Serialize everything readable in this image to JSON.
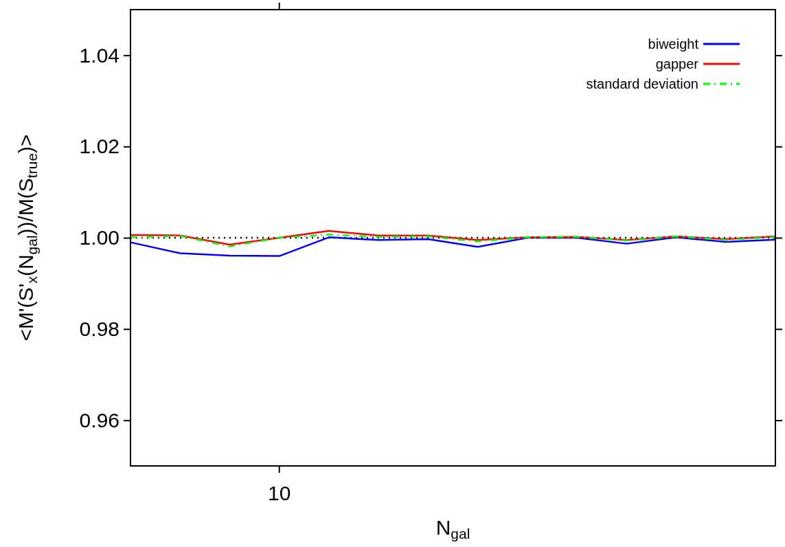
{
  "chart_data": {
    "type": "line",
    "xlabel": "N$_{gal}$",
    "ylabel": "<M'(S'$_{x}$(N$_{gal}$))/M(S$_{true}$)>",
    "categories": [
      null,
      null,
      null,
      "10",
      null,
      null,
      null,
      null,
      null,
      null,
      null,
      null,
      null,
      null
    ],
    "series": [
      {
        "name": "biweight",
        "color": "#0000ff",
        "line_style": "solid",
        "values": [
          0.999,
          0.9966,
          0.9961,
          0.996,
          1.0001,
          0.9995,
          0.9997,
          0.998,
          1.0,
          1.0,
          0.9987,
          1.0001,
          0.9991,
          0.9996
        ]
      },
      {
        "name": "gapper",
        "color": "#ff0000",
        "line_style": "solid",
        "values": [
          1.0006,
          1.0005,
          0.9985,
          1.0,
          1.0015,
          1.0005,
          1.0005,
          0.9995,
          1.0001,
          1.0002,
          0.9995,
          1.0003,
          0.9997,
          1.0003
        ]
      },
      {
        "name": "standard deviation",
        "color": "#00ff00",
        "line_style": "dashdot",
        "values": [
          1.0001,
          1.0004,
          0.9981,
          1.0,
          1.0007,
          1.0002,
          1.0003,
          0.9992,
          1.0001,
          1.0002,
          0.9994,
          1.0003,
          0.9995,
          1.0002
        ]
      }
    ],
    "ylim": [
      0.95,
      1.05
    ],
    "yticks": [
      {
        "value": 0.96,
        "label": "0.96"
      },
      {
        "value": 0.98,
        "label": "0.98"
      },
      {
        "value": 1.0,
        "label": "1.00"
      },
      {
        "value": 1.02,
        "label": "1.02"
      },
      {
        "value": 1.04,
        "label": "1.04"
      }
    ],
    "ref_lines": [
      {
        "axis": "y",
        "value": 1.0,
        "color": "#000000",
        "line_style": "dotted"
      }
    ],
    "grid": false,
    "legend": "top right"
  }
}
